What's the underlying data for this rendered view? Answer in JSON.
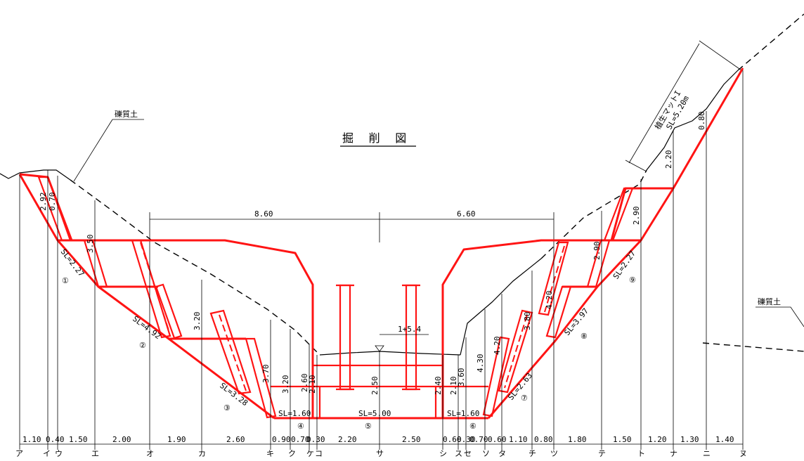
{
  "title": "掘 削 図",
  "soil_label_left": "礫質土",
  "soil_label_right": "礫質土",
  "mat_label_line1": "植生マットI",
  "mat_label_line2": "SL=5.20m",
  "width_left": "8.60",
  "width_right": "6.60",
  "level_mark": "1+5.4",
  "heights": {
    "h_left1": "2.92",
    "h_left2": "3.50",
    "h_left3": "3.20",
    "h_left4": "3.70",
    "h_left5": "3.20",
    "h_left6": "2.60",
    "h_left7": "2.10",
    "h_center": "2.50",
    "h_mid_r": "2.40",
    "h_right1": "2.10",
    "h_right2": "3.60",
    "h_right3": "4.30",
    "h_right4": "4.20",
    "h_right5": "3.80",
    "h_right6": "4.20",
    "h_right7": "2.90",
    "h_right8": "2.90",
    "h_right9": "2.20",
    "h_right10": "0.80",
    "h_left_small": "0.70"
  },
  "slopes": {
    "sl1": "SL=2.27",
    "sl2": "SL=4.92",
    "sl3": "SL=3.28",
    "sl4": "SL=1.60",
    "sl5": "SL=5.00",
    "sl6": "SL=1.60",
    "sl7": "SL=2.63",
    "sl8": "SL=3.97",
    "sl9": "SL=2.27"
  },
  "circles": [
    "①",
    "②",
    "③",
    "④",
    "⑤",
    "⑥",
    "⑦",
    "⑧",
    "⑨"
  ],
  "bottom_dims": [
    "1.10",
    "0.40",
    "1.50",
    "2.00",
    "1.90",
    "2.60",
    "0.90",
    "0.70",
    "0.30",
    "2.20",
    "2.50",
    "0.60",
    "0.30",
    "0.70",
    "0.60",
    "1.10",
    "0.80",
    "1.80",
    "1.50",
    "1.20",
    "1.30",
    "1.40"
  ],
  "stations": [
    "ア",
    "イ",
    "ウ",
    "エ",
    "オ",
    "カ",
    "キ",
    "ク",
    "ケ",
    "コ",
    "サ",
    "シ",
    "ス",
    "セ",
    "ソ",
    "タ",
    "チ",
    "ツ",
    "テ",
    "ト",
    "ナ",
    "ニ",
    "ヌ"
  ]
}
